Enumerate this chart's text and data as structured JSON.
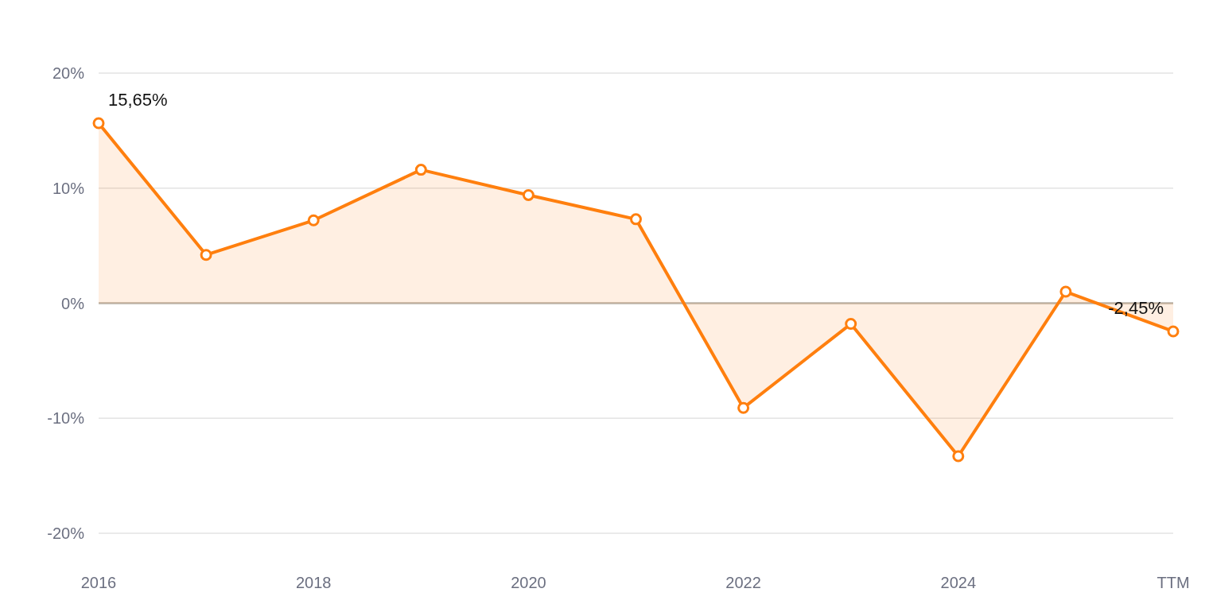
{
  "chart_data": {
    "type": "area",
    "categories": [
      "2016",
      null,
      "2018",
      null,
      "2020",
      null,
      "2022",
      null,
      "2024",
      null,
      "TTM"
    ],
    "series": [
      {
        "color": "#ff7f0e",
        "values": [
          15.65,
          4.2,
          7.2,
          11.6,
          9.4,
          7.3,
          -9.1,
          -1.8,
          -13.3,
          1.0,
          -2.45
        ],
        "value_labels": [
          "15,65%",
          null,
          null,
          null,
          null,
          null,
          null,
          null,
          null,
          null,
          "-2,45%"
        ]
      }
    ],
    "ylim": [
      -20,
      20
    ],
    "yticks": [
      {
        "value": -20,
        "label": "-20%"
      },
      {
        "value": -10,
        "label": "-10%"
      },
      {
        "value": 0,
        "label": "0%"
      },
      {
        "value": 10,
        "label": "10%"
      },
      {
        "value": 20,
        "label": "20%"
      }
    ],
    "grid": "y",
    "marker": "circle",
    "ref_lines": [
      {
        "axis": "y",
        "value": 0,
        "color": "#bcb5aa"
      }
    ]
  }
}
